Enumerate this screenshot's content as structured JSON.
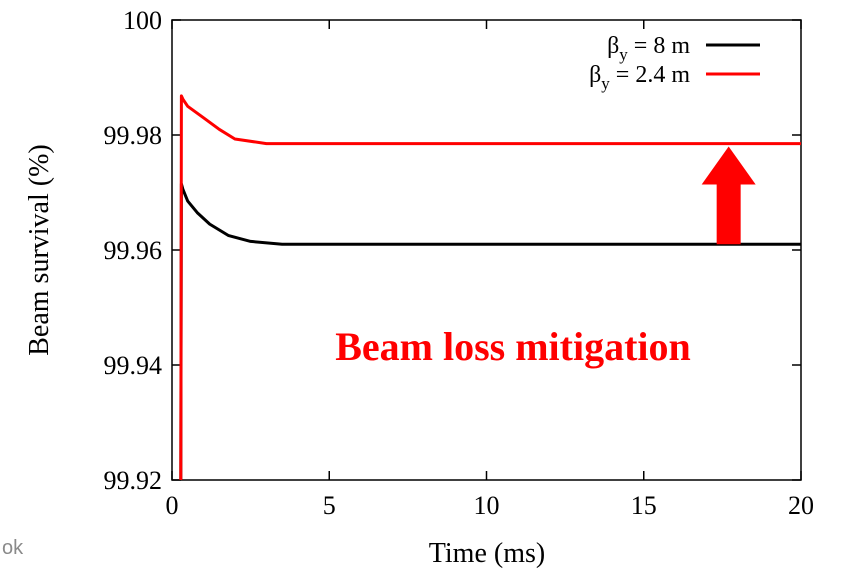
{
  "corner_fragment": "ok",
  "chart_data": {
    "type": "line",
    "xlabel": "Time (ms)",
    "ylabel": "Beam survival (%)",
    "xlim": [
      0,
      20
    ],
    "ylim": [
      99.92,
      100
    ],
    "x_ticks": [
      "0",
      "5",
      "10",
      "15",
      "20"
    ],
    "y_ticks": [
      "99.92",
      "99.94",
      "99.96",
      "99.98",
      "100"
    ],
    "grid": false,
    "legend_position": "top-right",
    "series": [
      {
        "name": "βy = 8 m",
        "name_base": "β",
        "name_sub": "y",
        "name_rest": " = 8 m",
        "color": "#000000",
        "x": [
          0.28,
          0.3,
          0.35,
          0.5,
          0.8,
          1.2,
          1.8,
          2.5,
          3.5,
          5,
          10,
          15,
          20
        ],
        "y": [
          99.92,
          99.9715,
          99.9705,
          99.9685,
          99.9665,
          99.9645,
          99.9625,
          99.9615,
          99.961,
          99.961,
          99.961,
          99.961,
          99.961
        ]
      },
      {
        "name": "βy = 2.4 m",
        "name_base": "β",
        "name_sub": "y",
        "name_rest": " = 2.4 m",
        "color": "#ff0000",
        "x": [
          0.28,
          0.3,
          0.35,
          0.5,
          1.0,
          1.5,
          2.0,
          3.0,
          5,
          10,
          15,
          20
        ],
        "y": [
          99.92,
          99.9868,
          99.9862,
          99.985,
          99.983,
          99.981,
          99.9793,
          99.9785,
          99.9785,
          99.9785,
          99.9785,
          99.9785
        ]
      }
    ],
    "annotation": {
      "text": "Beam loss mitigation",
      "color": "#ff0000"
    },
    "arrow": {
      "color": "#ff0000",
      "x": 17.7,
      "y_from": 99.961,
      "y_to": 99.978
    }
  }
}
